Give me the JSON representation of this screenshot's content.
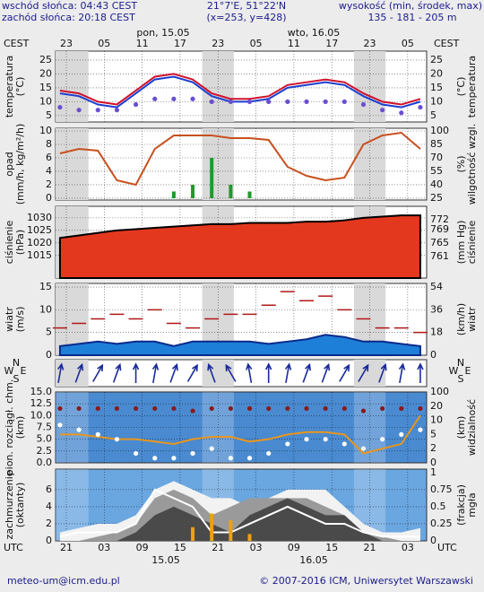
{
  "header": {
    "sunrise": "wschód słońca: 04:43 CEST",
    "sunset": "zachód słońca: 20:18 CEST",
    "coords": "21°7'E, 51°22'N",
    "grid_point": "(x=253, y=428)",
    "height_title": "wysokość (min, środek, max)",
    "height_values": "135 - 181 - 205 m",
    "day1": "pon, 15.05",
    "day2": "wto, 16.05",
    "tz_top": "CEST",
    "tz_bottom": "UTC",
    "date1": "15.05",
    "date2": "16.05"
  },
  "footer": {
    "email": "meteo-um@icm.edu.pl",
    "copyright": "© 2007-2016 ICM, Uniwersytet Warszawski"
  },
  "chart_data": [
    {
      "type": "line",
      "y_label": [
        "temperatura",
        "(°C)"
      ],
      "y2_label": [
        "(°C)",
        "temperatura"
      ],
      "xlim": [
        -2.7,
        56
      ],
      "xticks": [
        {
          "value": -1,
          "label": "23"
        },
        {
          "value": 5,
          "label": "05"
        },
        {
          "value": 11,
          "label": "11"
        },
        {
          "value": 17,
          "label": "17"
        },
        {
          "value": 23,
          "label": "23"
        },
        {
          "value": 29,
          "label": "05"
        },
        {
          "value": 35,
          "label": "11"
        },
        {
          "value": 41,
          "label": "17"
        },
        {
          "value": 47,
          "label": "23"
        },
        {
          "value": 53,
          "label": "05"
        }
      ],
      "ylim": [
        2.7,
        28.2
      ],
      "yticks": [
        5,
        10,
        15,
        20,
        25
      ],
      "y2lim": [
        2.7,
        28.2
      ],
      "y2ticks": [
        5,
        10,
        15,
        20,
        25
      ],
      "grid": true,
      "x": [
        -2,
        1,
        4,
        7,
        10,
        13,
        16,
        19,
        22,
        25,
        28,
        31,
        34,
        37,
        40,
        43,
        46,
        49,
        52,
        55
      ],
      "series": [
        {
          "kind": "line",
          "color": "#1a3fd0",
          "values": [
            13,
            12,
            9,
            8,
            13,
            18,
            19,
            17,
            12,
            10,
            10,
            11,
            15,
            16,
            17,
            16,
            12,
            9,
            8,
            10
          ]
        },
        {
          "kind": "line",
          "color": "#d0102a",
          "values": [
            14,
            13,
            10,
            9,
            14,
            19,
            20,
            18,
            13,
            11,
            11,
            12,
            16,
            17,
            18,
            17,
            13,
            10,
            9,
            11
          ]
        },
        {
          "kind": "dots",
          "color": "#6a4fd0",
          "values": [
            8,
            7,
            7,
            7,
            9,
            11,
            11,
            11,
            10,
            10,
            10,
            10,
            10,
            10,
            10,
            10,
            9,
            7,
            6,
            8
          ]
        }
      ]
    },
    {
      "type": "bar",
      "y_label": [
        "opad",
        "(mm/h, kg/m²/h)"
      ],
      "y2_label": [
        "(%)",
        "wilgotność wzgl."
      ],
      "ylim": [
        -0.27,
        10.4
      ],
      "yticks": [
        0,
        2,
        4,
        6,
        8,
        10
      ],
      "y2lim": [
        23,
        103
      ],
      "y2ticks": [
        25,
        40,
        55,
        70,
        85,
        100
      ],
      "grid": true,
      "x": [
        -2,
        1,
        4,
        7,
        10,
        13,
        16,
        19,
        22,
        25,
        28,
        31,
        34,
        37,
        40,
        43,
        46,
        49,
        52,
        55
      ],
      "series": [
        {
          "kind": "bar",
          "color": "#1f9a2a",
          "values": [
            0,
            0,
            0,
            0,
            0,
            0,
            1,
            2,
            6,
            2,
            1,
            0,
            0,
            0,
            0,
            0,
            0,
            0,
            0,
            0
          ]
        },
        {
          "kind": "line",
          "axis": "y2",
          "color": "#c8501e",
          "values": [
            75,
            80,
            78,
            45,
            40,
            80,
            95,
            95,
            95,
            92,
            92,
            90,
            60,
            50,
            45,
            48,
            85,
            95,
            98,
            80
          ]
        }
      ]
    },
    {
      "type": "area",
      "y_label": [
        "ciśnienie",
        "(hPa)"
      ],
      "y2_label": [
        "(mm Hg)",
        "ciśnienie"
      ],
      "ylim": [
        1006,
        1034.6
      ],
      "yticks": [
        1015,
        1020,
        1025,
        1030
      ],
      "y2lim": [
        754.6,
        776
      ],
      "y2ticks": [
        761,
        765,
        769,
        772
      ],
      "grid": true,
      "x": [
        -2,
        1,
        4,
        7,
        10,
        13,
        16,
        19,
        22,
        25,
        28,
        31,
        34,
        37,
        40,
        43,
        46,
        49,
        52,
        55
      ],
      "series": [
        {
          "kind": "area",
          "color": "#e4381e",
          "stroke": "#000000",
          "values": [
            1022,
            1023,
            1024,
            1025,
            1025.5,
            1026,
            1026.5,
            1027,
            1027.5,
            1027.5,
            1028,
            1028,
            1028,
            1028.5,
            1028.5,
            1029,
            1030,
            1030.5,
            1031,
            1031
          ]
        }
      ]
    },
    {
      "type": "area",
      "y_label": [
        "wiatr",
        "(m/s)"
      ],
      "y2_label": [
        "(km/h)",
        "wiatr"
      ],
      "ylim": [
        0,
        15.8
      ],
      "yticks": [
        0,
        5,
        10,
        15
      ],
      "y2lim": [
        0,
        56.9
      ],
      "y2ticks": [
        0,
        18,
        36,
        54
      ],
      "grid": true,
      "x": [
        -2,
        1,
        4,
        7,
        10,
        13,
        16,
        19,
        22,
        25,
        28,
        31,
        34,
        37,
        40,
        43,
        46,
        49,
        52,
        55
      ],
      "series": [
        {
          "kind": "area",
          "color": "#1e7fd8",
          "stroke": "#0a2a8a",
          "values": [
            2,
            2.5,
            3,
            2.5,
            3,
            3,
            2,
            3,
            3,
            3,
            3,
            2.5,
            3,
            3.5,
            4.5,
            4,
            3,
            3,
            2.5,
            2
          ]
        },
        {
          "kind": "dash",
          "color": "#b01818",
          "values": [
            6,
            7,
            8,
            9,
            8,
            10,
            7,
            6,
            8,
            9,
            9,
            11,
            14,
            12,
            13,
            10,
            8,
            6,
            6,
            5
          ]
        }
      ]
    },
    {
      "type": "arrows",
      "compass": [
        "N",
        "W",
        "E",
        "S"
      ],
      "x": [
        -2,
        1,
        4,
        7,
        10,
        13,
        16,
        19,
        22,
        25,
        28,
        31,
        34,
        37,
        40,
        43,
        46,
        49,
        52,
        55
      ],
      "series": [
        {
          "kind": "arrow",
          "color": "#1a2a9a",
          "values": [
            190,
            200,
            210,
            200,
            180,
            190,
            200,
            210,
            160,
            150,
            170,
            180,
            190,
            200,
            200,
            210,
            210,
            200,
            190,
            180
          ]
        }
      ]
    },
    {
      "type": "line",
      "background": "#4a8ad0",
      "y_label": [
        "pion. rozciągł. chm.",
        "(km)"
      ],
      "y2_label": [
        "(km)",
        "widzialność"
      ],
      "ylim": [
        0,
        15
      ],
      "yticks": [
        {
          "value": 0,
          "label": "0.0"
        },
        {
          "value": 2.5,
          "label": "2.5"
        },
        {
          "value": 5,
          "label": "5.0"
        },
        {
          "value": 7.5,
          "label": "7.5"
        },
        {
          "value": 10,
          "label": "10.0"
        },
        {
          "value": 12.5,
          "label": "12.5"
        },
        {
          "value": 15,
          "label": "15.0"
        }
      ],
      "y2ticks": [
        0,
        2,
        5,
        10,
        20,
        100
      ],
      "y2_spacing": "even",
      "grid": true,
      "x": [
        -2,
        1,
        4,
        7,
        10,
        13,
        16,
        19,
        22,
        25,
        28,
        31,
        34,
        37,
        40,
        43,
        46,
        49,
        52,
        55
      ],
      "series": [
        {
          "kind": "dots",
          "color": "#8a1a1a",
          "values": [
            11.5,
            11.5,
            11.5,
            11.5,
            11.5,
            11.5,
            11.5,
            11,
            11.5,
            11.5,
            11.5,
            11.5,
            11.5,
            11.5,
            11.5,
            11.5,
            11,
            11.5,
            11.5,
            11.5
          ]
        },
        {
          "kind": "line",
          "color": "#e8961e",
          "values": [
            6,
            6,
            5.5,
            5,
            5,
            4.5,
            4,
            5,
            5.5,
            5.5,
            4.5,
            5,
            6,
            6.5,
            6.5,
            6,
            2,
            3,
            4,
            10
          ]
        },
        {
          "kind": "dots",
          "color": "#ffffff",
          "values": [
            8,
            7,
            6,
            5,
            2,
            1,
            1,
            2,
            3,
            1,
            1,
            2,
            4,
            5,
            5,
            4,
            3,
            5,
            6,
            7
          ]
        }
      ]
    },
    {
      "type": "area",
      "background": "#6aa6e0",
      "y_label": [
        "zachmurzenie",
        "(oktanty)"
      ],
      "y2_label": [
        "(frakcja)",
        "mgła"
      ],
      "xlim": [
        -2.7,
        56
      ],
      "xticks": [
        {
          "value": -1,
          "label": "21"
        },
        {
          "value": 5,
          "label": "03"
        },
        {
          "value": 11,
          "label": "09"
        },
        {
          "value": 17,
          "label": "15"
        },
        {
          "value": 23,
          "label": "21"
        },
        {
          "value": 29,
          "label": "03"
        },
        {
          "value": 35,
          "label": "09"
        },
        {
          "value": 41,
          "label": "15"
        },
        {
          "value": 47,
          "label": "21"
        },
        {
          "value": 53,
          "label": "03"
        }
      ],
      "ylim": [
        0,
        8.4
      ],
      "yticks": [
        0,
        2,
        4,
        6
      ],
      "y2lim": [
        0,
        1.05
      ],
      "y2ticks": [
        0,
        0.25,
        0.5,
        0.75,
        1
      ],
      "grid": true,
      "x": [
        -2,
        1,
        4,
        7,
        10,
        13,
        16,
        19,
        22,
        25,
        28,
        31,
        34,
        37,
        40,
        43,
        46,
        49,
        52,
        55
      ],
      "series": [
        {
          "kind": "area",
          "color": "#f2f2f2",
          "values": [
            1,
            1.5,
            2,
            2,
            3,
            6,
            7,
            6,
            5,
            5,
            4,
            5,
            6,
            6,
            6,
            4,
            2,
            1,
            1,
            1.5
          ]
        },
        {
          "kind": "area",
          "color": "#9a9a9a",
          "values": [
            0,
            0,
            0.5,
            1,
            2,
            5,
            6,
            5,
            3,
            4,
            5,
            5,
            5,
            5,
            4,
            3,
            1,
            0.5,
            0,
            0
          ]
        },
        {
          "kind": "area",
          "color": "#4a4a4a",
          "values": [
            0,
            0,
            0,
            0,
            1,
            3,
            4,
            3,
            2,
            1,
            3,
            4,
            5,
            4,
            3,
            3,
            1,
            0,
            0,
            0
          ]
        },
        {
          "kind": "line",
          "color": "#ffffff",
          "values": [
            0.5,
            1,
            1,
            1,
            2,
            6,
            5,
            4,
            1,
            1,
            2,
            3,
            4,
            3,
            2,
            2,
            1,
            0.5,
            0.5,
            0.5
          ]
        },
        {
          "kind": "bar",
          "axis": "y2",
          "color": "#f0a010",
          "values": [
            0,
            0,
            0,
            0,
            0,
            0,
            0,
            0.2,
            0.4,
            0.3,
            0.1,
            0,
            0,
            0,
            0,
            0,
            0,
            0,
            0,
            0
          ]
        }
      ]
    }
  ]
}
